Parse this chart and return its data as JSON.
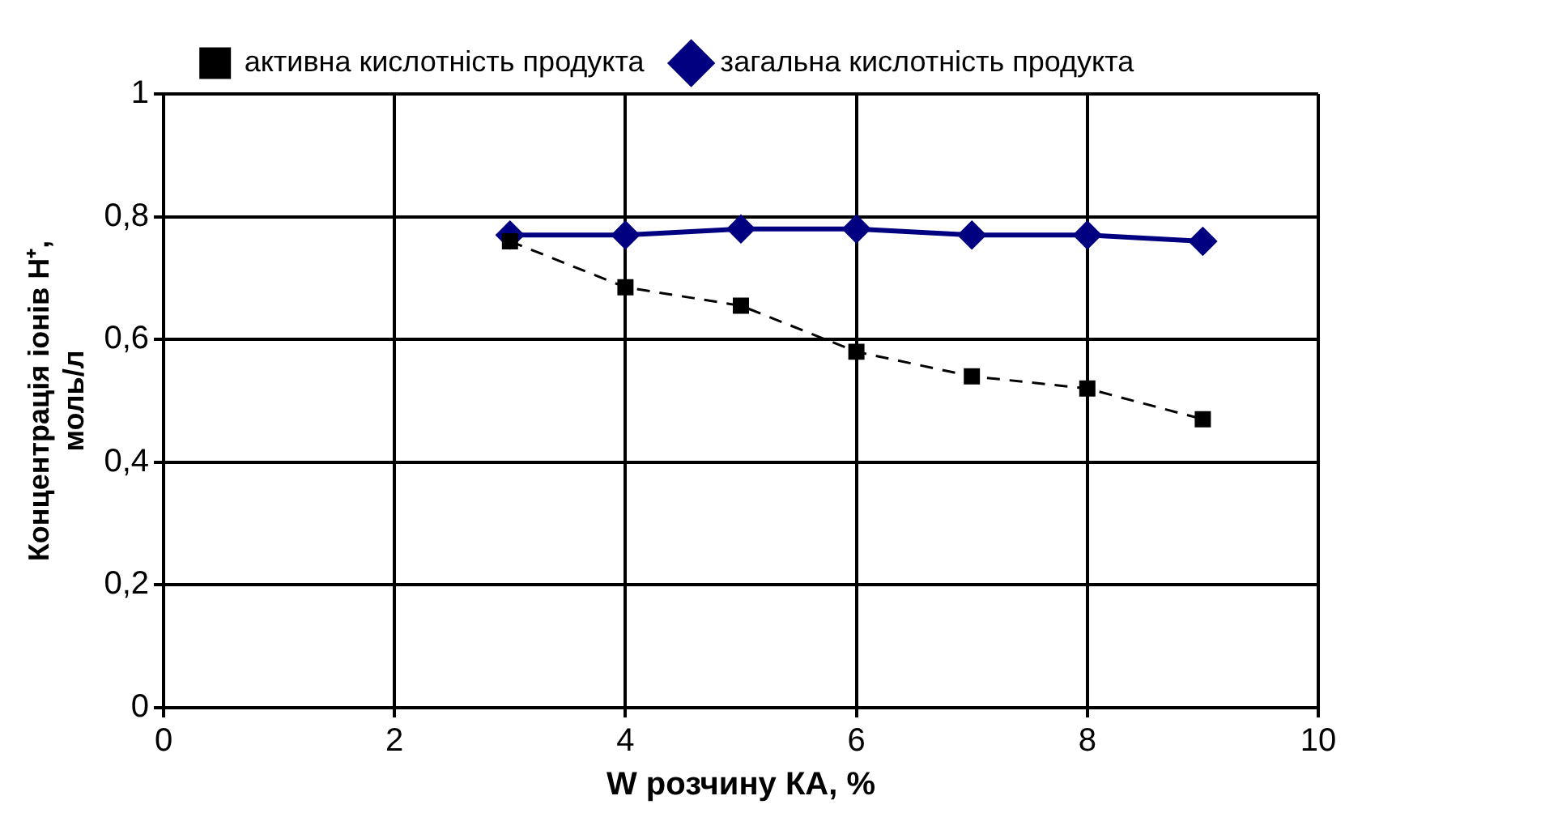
{
  "chart_data": {
    "type": "line",
    "xlabel": "W розчину КА, %",
    "ylabel": "Концентрація іонів H⁺, моль/л",
    "xlim": [
      0,
      10
    ],
    "xticks": [
      0,
      2,
      4,
      6,
      8,
      10
    ],
    "ylim": [
      0,
      1
    ],
    "yticks": [
      0,
      {
        "value": 0.2,
        "label": "0,2"
      },
      {
        "value": 0.4,
        "label": "0,4"
      },
      {
        "value": 0.6,
        "label": "0,6"
      },
      {
        "value": 0.8,
        "label": "0,8"
      },
      1
    ],
    "x": [
      3,
      4,
      5,
      6,
      7,
      8,
      9
    ],
    "series": [
      {
        "name": "загальна кислотність продукта",
        "color": "#000080",
        "values": [
          0.77,
          0.77,
          0.78,
          0.78,
          0.77,
          0.77,
          0.76
        ],
        "marker": "diamond",
        "line_style": "solid"
      },
      {
        "name": "активна кислотність продукта",
        "color": "#000000",
        "values": [
          0.76,
          0.685,
          0.655,
          0.58,
          0.54,
          0.52,
          0.47
        ],
        "marker": "square",
        "line_style": "dashed"
      }
    ],
    "grid": true,
    "legend": "top"
  }
}
